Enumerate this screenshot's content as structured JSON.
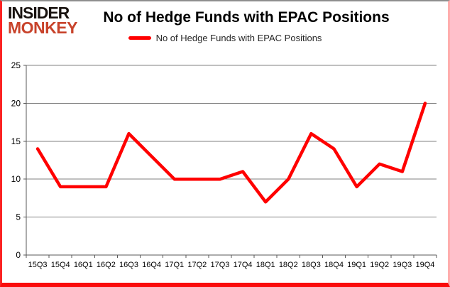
{
  "logo": {
    "line1": "INSIDER",
    "line2": "MONKEY",
    "line1_color": "#18120f",
    "line2_color": "#c8432b"
  },
  "header": {
    "title": "No of Hedge Funds with EPAC Positions"
  },
  "chart_data": {
    "type": "line",
    "title": "No of Hedge Funds with EPAC Positions",
    "categories": [
      "15Q3",
      "15Q4",
      "16Q1",
      "16Q2",
      "16Q3",
      "16Q4",
      "17Q1",
      "17Q2",
      "17Q3",
      "17Q4",
      "18Q1",
      "18Q2",
      "18Q3",
      "18Q4",
      "19Q1",
      "19Q2",
      "19Q3",
      "19Q4"
    ],
    "series": [
      {
        "name": "No of Hedge Funds with EPAC Positions",
        "color": "#ff0000",
        "values": [
          14,
          9,
          9,
          9,
          16,
          13,
          10,
          10,
          10,
          11,
          7,
          10,
          16,
          14,
          9,
          12,
          11,
          20
        ]
      }
    ],
    "xlabel": "",
    "ylabel": "",
    "ylim": [
      0,
      25
    ],
    "yticks": [
      0,
      5,
      10,
      15,
      20,
      25
    ],
    "grid": true,
    "legend_position": "top",
    "gridline_color": "#808080",
    "axis_color": "#595959",
    "tick_label_color": "#000000"
  }
}
